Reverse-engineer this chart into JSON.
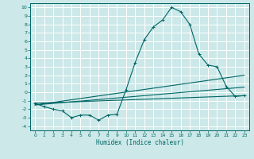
{
  "title": "",
  "xlabel": "Humidex (Indice chaleur)",
  "bg_color": "#cce8e8",
  "grid_color": "#ffffff",
  "line_color": "#006666",
  "xlim": [
    -0.5,
    23.5
  ],
  "ylim": [
    -4.5,
    10.5
  ],
  "xticks": [
    0,
    1,
    2,
    3,
    4,
    5,
    6,
    7,
    8,
    9,
    10,
    11,
    12,
    13,
    14,
    15,
    16,
    17,
    18,
    19,
    20,
    21,
    22,
    23
  ],
  "yticks": [
    -4,
    -3,
    -2,
    -1,
    0,
    1,
    2,
    3,
    4,
    5,
    6,
    7,
    8,
    9,
    10
  ],
  "main_curve_x": [
    0,
    1,
    2,
    3,
    4,
    5,
    6,
    7,
    8,
    9,
    10,
    11,
    12,
    13,
    14,
    15,
    16,
    17,
    18,
    19,
    20,
    21,
    22,
    23
  ],
  "main_curve_y": [
    -1.3,
    -1.7,
    -2.0,
    -2.2,
    -3.0,
    -2.7,
    -2.7,
    -3.3,
    -2.7,
    -2.6,
    0.3,
    3.5,
    6.2,
    7.7,
    8.5,
    10.0,
    9.5,
    8.0,
    4.5,
    3.2,
    3.0,
    0.7,
    -0.5,
    -0.4
  ],
  "line1_x": [
    0,
    23
  ],
  "line1_y": [
    -1.3,
    -0.4
  ],
  "line2_x": [
    0,
    23
  ],
  "line2_y": [
    -1.5,
    0.6
  ],
  "line3_x": [
    0,
    23
  ],
  "line3_y": [
    -1.5,
    2.0
  ]
}
